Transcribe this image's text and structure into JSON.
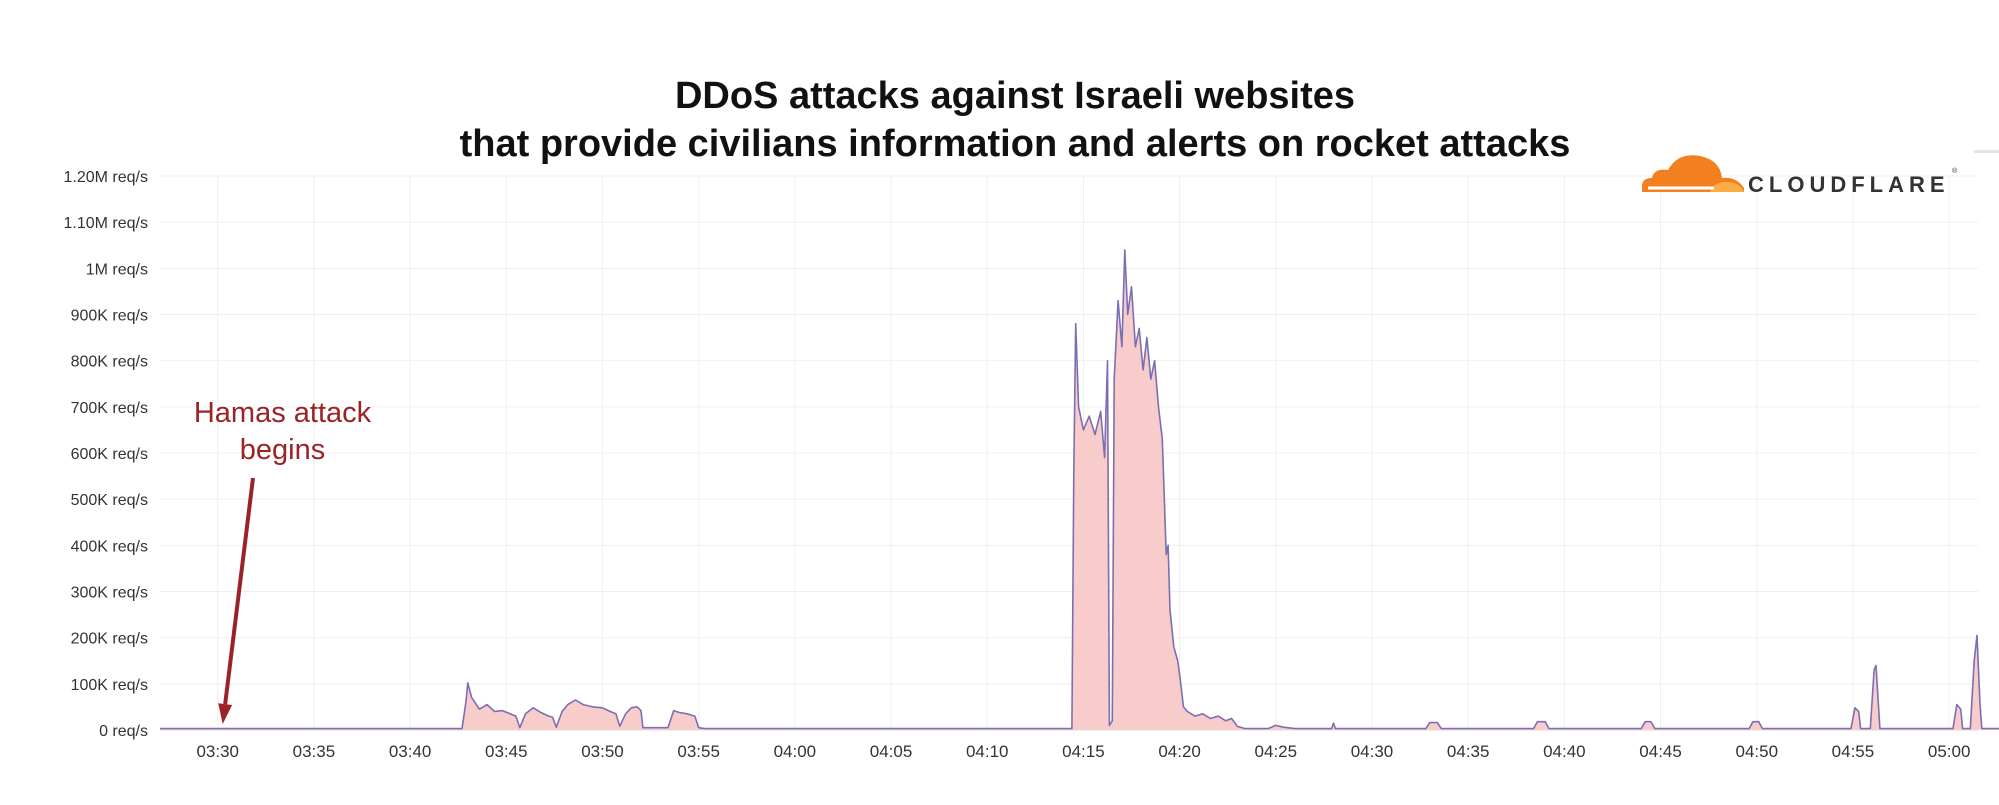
{
  "chart_data": {
    "type": "area",
    "title_lines": [
      "DDoS attacks against Israeli websites",
      "that provide civilians information and alerts on rocket attacks"
    ],
    "x_ticks": [
      "03:30",
      "03:35",
      "03:40",
      "03:45",
      "03:50",
      "03:55",
      "04:00",
      "04:05",
      "04:10",
      "04:15",
      "04:20",
      "04:25",
      "04:30",
      "04:35",
      "04:40",
      "04:45",
      "04:50",
      "04:55",
      "05:00"
    ],
    "y_ticks": [
      "0 req/s",
      "100K req/s",
      "200K req/s",
      "300K req/s",
      "400K req/s",
      "500K req/s",
      "600K req/s",
      "700K req/s",
      "800K req/s",
      "900K req/s",
      "1M req/s",
      "1.10M req/s",
      "1.20M req/s"
    ],
    "y_tick_values": [
      0,
      100000,
      200000,
      300000,
      400000,
      500000,
      600000,
      700000,
      800000,
      900000,
      1000000,
      1100000,
      1200000
    ],
    "ylim": [
      0,
      1200000
    ],
    "xlim_minutes": [
      -3,
      91.5
    ],
    "x_unit": "minutes after 03:30",
    "grid": true,
    "series": [
      {
        "color": "#7b6fb3",
        "fill": "#f9cccc",
        "points": [
          [
            -3,
            3000
          ],
          [
            12.7,
            3000
          ],
          [
            12.9,
            60000
          ],
          [
            13.0,
            102000
          ],
          [
            13.2,
            70000
          ],
          [
            13.6,
            45000
          ],
          [
            14.0,
            55000
          ],
          [
            14.4,
            40000
          ],
          [
            14.8,
            42000
          ],
          [
            15.2,
            35000
          ],
          [
            15.5,
            30000
          ],
          [
            15.7,
            5000
          ],
          [
            16.0,
            35000
          ],
          [
            16.4,
            48000
          ],
          [
            16.8,
            38000
          ],
          [
            17.2,
            30000
          ],
          [
            17.4,
            28000
          ],
          [
            17.6,
            6000
          ],
          [
            17.9,
            40000
          ],
          [
            18.2,
            55000
          ],
          [
            18.6,
            65000
          ],
          [
            19.0,
            55000
          ],
          [
            19.5,
            50000
          ],
          [
            20.0,
            48000
          ],
          [
            20.4,
            40000
          ],
          [
            20.7,
            35000
          ],
          [
            20.9,
            8000
          ],
          [
            21.2,
            35000
          ],
          [
            21.5,
            48000
          ],
          [
            21.8,
            50000
          ],
          [
            22.0,
            42000
          ],
          [
            22.1,
            5000
          ],
          [
            23.4,
            5000
          ],
          [
            23.7,
            42000
          ],
          [
            24.0,
            38000
          ],
          [
            24.4,
            35000
          ],
          [
            24.8,
            30000
          ],
          [
            25.0,
            5000
          ],
          [
            25.3,
            3000
          ],
          [
            44.4,
            3000
          ],
          [
            44.5,
            560000
          ],
          [
            44.6,
            880000
          ],
          [
            44.75,
            700000
          ],
          [
            45.0,
            650000
          ],
          [
            45.3,
            680000
          ],
          [
            45.6,
            640000
          ],
          [
            45.9,
            690000
          ],
          [
            46.1,
            590000
          ],
          [
            46.25,
            800000
          ],
          [
            46.35,
            10000
          ],
          [
            46.5,
            20000
          ],
          [
            46.6,
            760000
          ],
          [
            46.8,
            930000
          ],
          [
            47.0,
            830000
          ],
          [
            47.15,
            1040000
          ],
          [
            47.3,
            900000
          ],
          [
            47.5,
            960000
          ],
          [
            47.7,
            830000
          ],
          [
            47.9,
            870000
          ],
          [
            48.1,
            780000
          ],
          [
            48.3,
            850000
          ],
          [
            48.5,
            760000
          ],
          [
            48.7,
            800000
          ],
          [
            48.9,
            700000
          ],
          [
            49.1,
            630000
          ],
          [
            49.3,
            380000
          ],
          [
            49.4,
            400000
          ],
          [
            49.5,
            260000
          ],
          [
            49.7,
            180000
          ],
          [
            49.9,
            150000
          ],
          [
            50.0,
            120000
          ],
          [
            50.2,
            50000
          ],
          [
            50.4,
            40000
          ],
          [
            50.8,
            30000
          ],
          [
            51.2,
            35000
          ],
          [
            51.6,
            25000
          ],
          [
            52.0,
            30000
          ],
          [
            52.4,
            20000
          ],
          [
            52.7,
            25000
          ],
          [
            53.0,
            8000
          ],
          [
            53.4,
            3000
          ],
          [
            54.6,
            3000
          ],
          [
            55.0,
            10000
          ],
          [
            55.4,
            6000
          ],
          [
            56.0,
            3000
          ],
          [
            57.9,
            3000
          ],
          [
            58.0,
            15000
          ],
          [
            58.1,
            3000
          ],
          [
            62.8,
            3000
          ],
          [
            63.0,
            16000
          ],
          [
            63.4,
            16000
          ],
          [
            63.6,
            3000
          ],
          [
            68.4,
            3000
          ],
          [
            68.6,
            18000
          ],
          [
            69.0,
            18000
          ],
          [
            69.2,
            3000
          ],
          [
            74.0,
            3000
          ],
          [
            74.2,
            18000
          ],
          [
            74.5,
            18000
          ],
          [
            74.7,
            3000
          ],
          [
            79.6,
            3000
          ],
          [
            79.8,
            18000
          ],
          [
            80.1,
            18000
          ],
          [
            80.3,
            3000
          ],
          [
            84.9,
            3000
          ],
          [
            85.1,
            48000
          ],
          [
            85.3,
            40000
          ],
          [
            85.4,
            3000
          ],
          [
            85.9,
            3000
          ],
          [
            86.1,
            130000
          ],
          [
            86.2,
            140000
          ],
          [
            86.4,
            3000
          ],
          [
            90.2,
            3000
          ],
          [
            90.4,
            55000
          ],
          [
            90.6,
            45000
          ],
          [
            90.7,
            3000
          ],
          [
            91.1,
            3000
          ],
          [
            91.3,
            150000
          ],
          [
            91.45,
            205000
          ],
          [
            91.6,
            60000
          ],
          [
            91.7,
            3000
          ],
          [
            94.5,
            3000
          ]
        ]
      }
    ],
    "annotation": {
      "lines": [
        "Hamas attack",
        "begins"
      ],
      "at_x": 0,
      "at_y": 0,
      "color": "#9b2226"
    }
  },
  "logo": {
    "text": "CLOUDFLARE",
    "mark": "®",
    "icon": "cloud-icon",
    "color": "#f38020"
  }
}
